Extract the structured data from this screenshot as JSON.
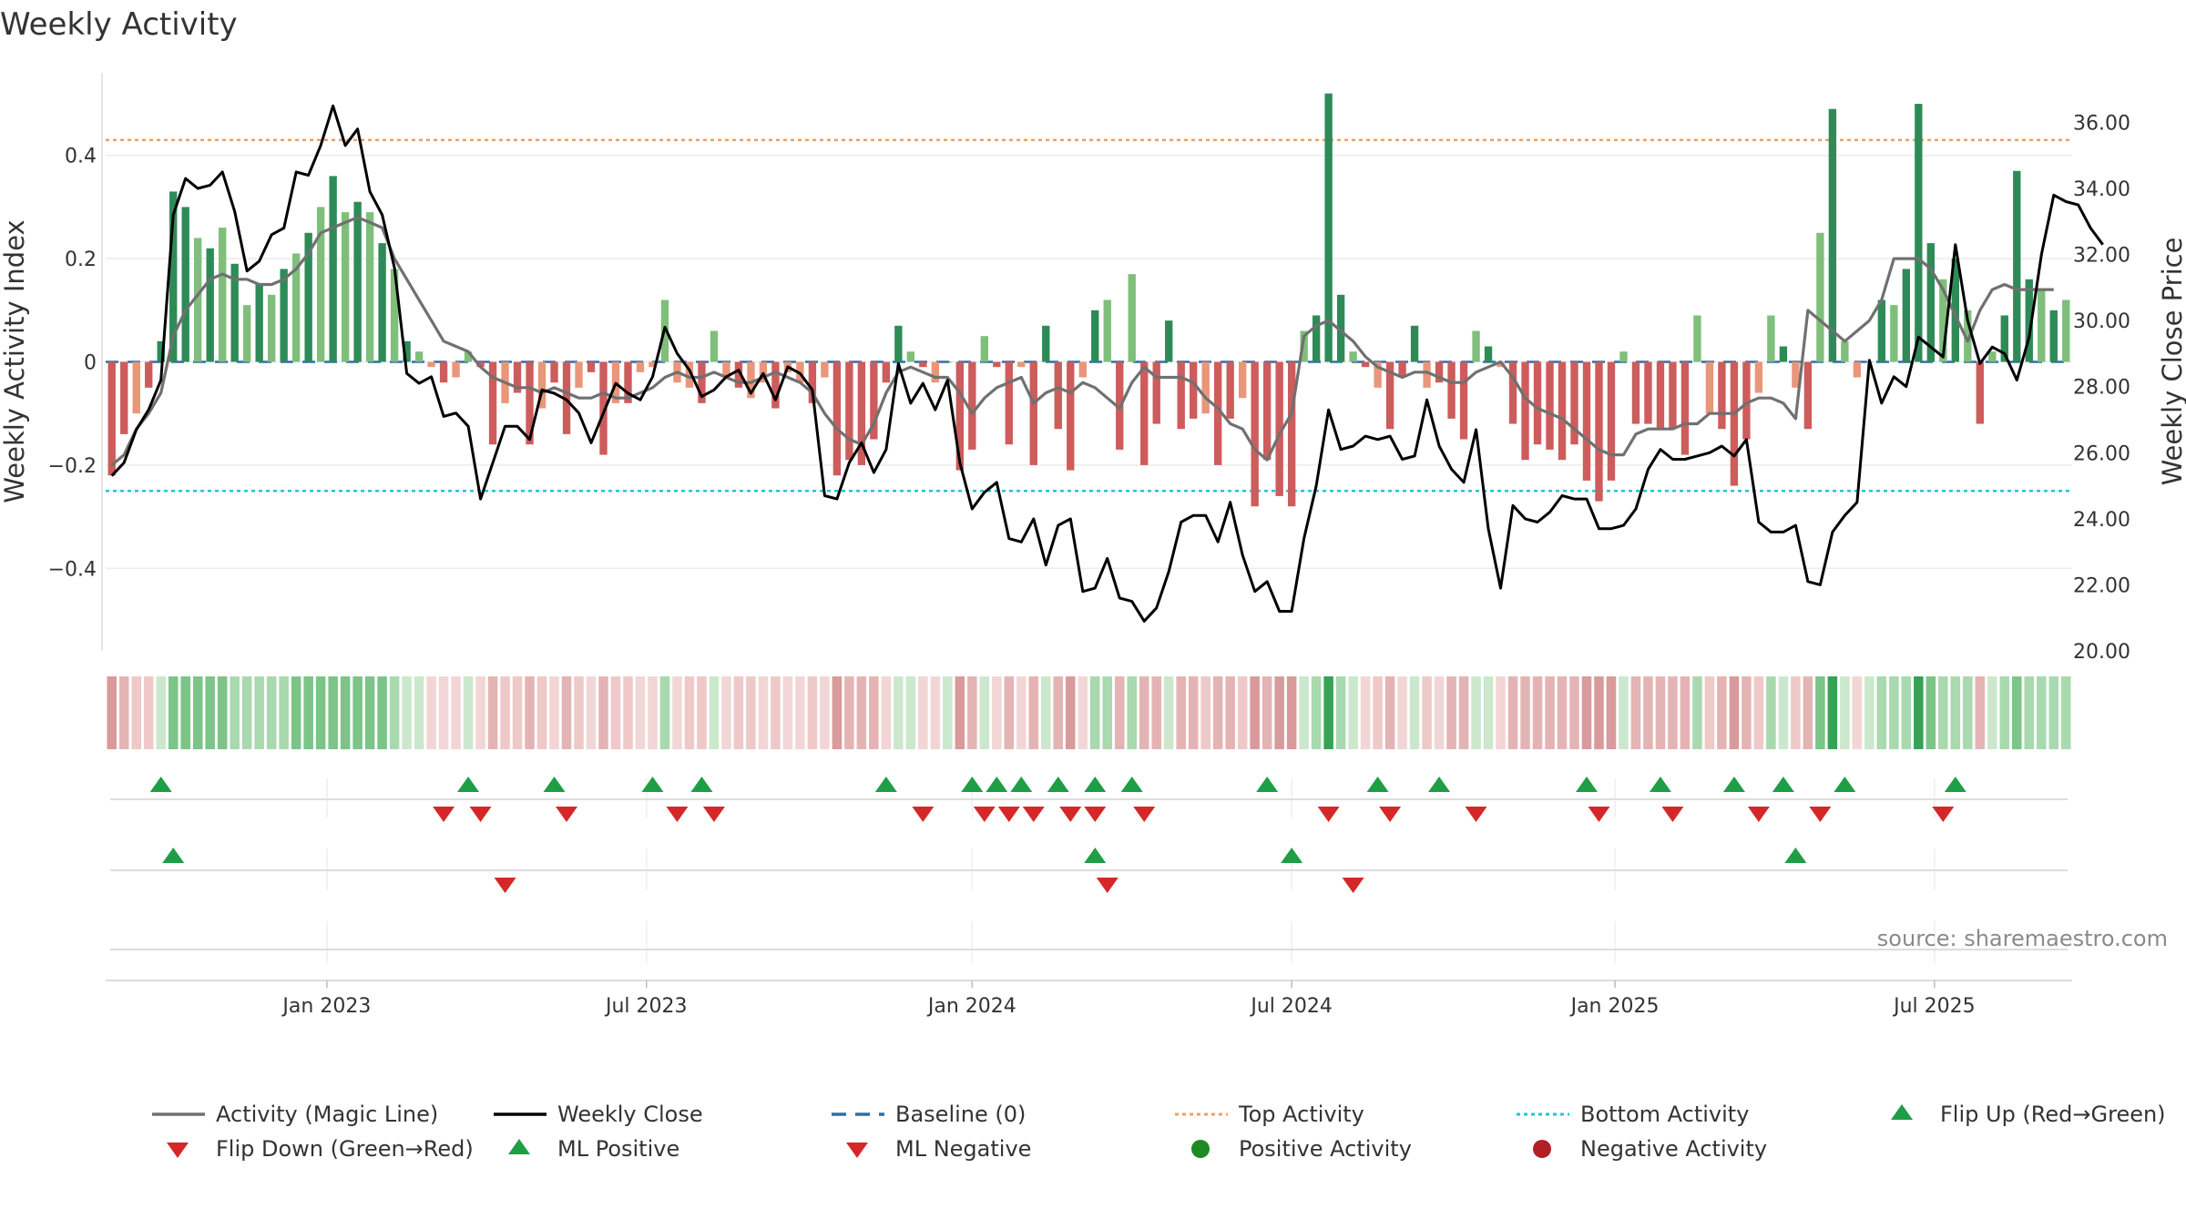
{
  "title": "Weekly Activity",
  "source": "source: sharemaestro.com",
  "chart_data": {
    "type": "bar",
    "title": "Weekly Activity",
    "ylabel": "Weekly Activity Index",
    "y2label": "Weekly Close Price",
    "ylim": [
      -0.56,
      0.56
    ],
    "y2lim": [
      20.0,
      37.5
    ],
    "yticks": [
      -0.4,
      -0.2,
      0,
      0.2,
      0.4
    ],
    "ytick_labels": [
      "−0.4",
      "−0.2",
      "0",
      "0.2",
      "0.4"
    ],
    "y2ticks": [
      20,
      22,
      24,
      26,
      28,
      30,
      32,
      34,
      36
    ],
    "y2tick_labels": [
      "20.00",
      "22.00",
      "24.00",
      "26.00",
      "28.00",
      "30.00",
      "32.00",
      "34.00",
      "36.00"
    ],
    "x_start": "2022-08-29",
    "xticks": [
      {
        "label": "Jan 2023",
        "week": 18
      },
      {
        "label": "Jul 2023",
        "week": 44
      },
      {
        "label": "Jan 2024",
        "week": 70.5
      },
      {
        "label": "Jul 2024",
        "week": 96.5
      },
      {
        "label": "Jan 2025",
        "week": 122.8
      },
      {
        "label": "Jul 2025",
        "week": 148.8
      }
    ],
    "top_activity": 0.43,
    "bottom_activity": -0.25,
    "baseline": 0,
    "activity": [
      -0.22,
      -0.14,
      -0.1,
      -0.05,
      0.04,
      0.33,
      0.3,
      0.24,
      0.22,
      0.26,
      0.19,
      0.11,
      0.15,
      0.13,
      0.18,
      0.21,
      0.25,
      0.3,
      0.36,
      0.29,
      0.31,
      0.29,
      0.23,
      0.18,
      0.04,
      0.02,
      -0.01,
      -0.04,
      -0.03,
      0.02,
      -0.01,
      -0.16,
      -0.08,
      -0.06,
      -0.16,
      -0.09,
      -0.04,
      -0.14,
      -0.05,
      -0.02,
      -0.18,
      -0.08,
      -0.08,
      -0.02,
      -0.01,
      0.12,
      -0.04,
      -0.05,
      -0.08,
      0.06,
      -0.03,
      -0.05,
      -0.07,
      -0.04,
      -0.09,
      -0.02,
      -0.04,
      -0.08,
      -0.03,
      -0.22,
      -0.19,
      -0.2,
      -0.15,
      -0.04,
      0.07,
      0.02,
      -0.01,
      -0.04,
      0.0,
      -0.21,
      -0.17,
      0.05,
      -0.01,
      -0.16,
      -0.01,
      -0.2,
      0.07,
      -0.13,
      -0.21,
      -0.03,
      0.1,
      0.12,
      -0.17,
      0.17,
      -0.2,
      -0.12,
      0.08,
      -0.13,
      -0.11,
      -0.1,
      -0.2,
      -0.11,
      -0.07,
      -0.28,
      -0.19,
      -0.26,
      -0.28,
      0.06,
      0.09,
      0.52,
      0.13,
      0.02,
      -0.01,
      -0.05,
      -0.13,
      -0.03,
      0.07,
      -0.05,
      -0.04,
      -0.11,
      -0.15,
      0.06,
      0.03,
      -0.01,
      -0.12,
      -0.19,
      -0.16,
      -0.17,
      -0.19,
      -0.16,
      -0.23,
      -0.27,
      -0.23,
      0.02,
      -0.12,
      -0.12,
      -0.13,
      -0.13,
      -0.18,
      0.09,
      -0.1,
      -0.13,
      -0.24,
      -0.15,
      -0.06,
      0.09,
      0.03,
      -0.05,
      -0.13,
      0.25,
      0.49,
      0.04,
      -0.03,
      0.0,
      0.12,
      0.11,
      0.18,
      0.5,
      0.23,
      0.16,
      0.2,
      0.1,
      -0.12,
      0.02,
      0.09,
      0.37,
      0.16,
      0.14,
      0.1,
      0.12
    ],
    "magic_line": [
      -0.2,
      -0.18,
      -0.13,
      -0.1,
      -0.06,
      0.05,
      0.1,
      0.13,
      0.16,
      0.17,
      0.16,
      0.16,
      0.15,
      0.15,
      0.16,
      0.18,
      0.21,
      0.25,
      0.26,
      0.27,
      0.28,
      0.27,
      0.26,
      0.2,
      0.16,
      0.12,
      0.08,
      0.04,
      0.03,
      0.02,
      -0.01,
      -0.03,
      -0.04,
      -0.05,
      -0.05,
      -0.06,
      -0.05,
      -0.06,
      -0.07,
      -0.07,
      -0.06,
      -0.07,
      -0.07,
      -0.06,
      -0.05,
      -0.03,
      -0.02,
      -0.03,
      -0.03,
      -0.02,
      -0.03,
      -0.04,
      -0.04,
      -0.03,
      -0.02,
      -0.03,
      -0.04,
      -0.06,
      -0.1,
      -0.13,
      -0.15,
      -0.16,
      -0.12,
      -0.06,
      -0.02,
      -0.01,
      -0.02,
      -0.03,
      -0.03,
      -0.06,
      -0.1,
      -0.07,
      -0.05,
      -0.04,
      -0.03,
      -0.08,
      -0.06,
      -0.05,
      -0.06,
      -0.04,
      -0.05,
      -0.07,
      -0.09,
      -0.04,
      -0.01,
      -0.03,
      -0.03,
      -0.03,
      -0.04,
      -0.07,
      -0.09,
      -0.12,
      -0.13,
      -0.17,
      -0.19,
      -0.14,
      -0.1,
      0.05,
      0.07,
      0.08,
      0.06,
      0.04,
      0.01,
      -0.01,
      -0.02,
      -0.03,
      -0.02,
      -0.02,
      -0.03,
      -0.04,
      -0.04,
      -0.02,
      -0.01,
      0.0,
      -0.03,
      -0.07,
      -0.09,
      -0.1,
      -0.11,
      -0.13,
      -0.15,
      -0.17,
      -0.18,
      -0.18,
      -0.14,
      -0.13,
      -0.13,
      -0.13,
      -0.12,
      -0.12,
      -0.1,
      -0.1,
      -0.1,
      -0.08,
      -0.07,
      -0.07,
      -0.08,
      -0.11,
      0.1,
      0.08,
      0.06,
      0.04,
      0.06,
      0.08,
      0.12,
      0.2,
      0.2,
      0.2,
      0.18,
      0.14,
      0.09,
      0.04,
      0.1,
      0.14,
      0.15,
      0.14,
      0.14,
      0.14,
      0.14
    ],
    "weekly_close": [
      25.3,
      25.7,
      26.7,
      27.3,
      28.2,
      33.2,
      34.3,
      34.0,
      34.1,
      34.5,
      33.3,
      31.5,
      31.8,
      32.6,
      32.8,
      34.5,
      34.4,
      35.3,
      36.5,
      35.3,
      35.8,
      33.9,
      33.2,
      31.6,
      28.4,
      28.1,
      28.3,
      27.1,
      27.2,
      26.8,
      24.6,
      25.7,
      26.8,
      26.8,
      26.4,
      27.9,
      27.8,
      27.6,
      27.2,
      26.3,
      27.2,
      28.1,
      27.8,
      27.6,
      28.3,
      29.8,
      29.0,
      28.5,
      27.7,
      27.9,
      28.3,
      28.5,
      27.8,
      28.4,
      27.6,
      28.6,
      28.4,
      27.9,
      24.7,
      24.6,
      25.7,
      26.3,
      25.4,
      26.1,
      28.7,
      27.5,
      28.1,
      27.3,
      28.2,
      25.7,
      24.3,
      24.8,
      25.1,
      23.4,
      23.3,
      24.0,
      22.6,
      23.8,
      24.0,
      21.8,
      21.9,
      22.8,
      21.6,
      21.5,
      20.9,
      21.3,
      22.4,
      23.9,
      24.1,
      24.1,
      23.3,
      24.5,
      22.9,
      21.8,
      22.1,
      21.2,
      21.2,
      23.4,
      25.0,
      27.3,
      26.1,
      26.2,
      26.5,
      26.4,
      26.5,
      25.8,
      25.9,
      27.6,
      26.2,
      25.5,
      25.1,
      26.7,
      23.7,
      21.9,
      24.4,
      24.0,
      23.9,
      24.2,
      24.7,
      24.6,
      24.6,
      23.7,
      23.7,
      23.8,
      24.3,
      25.5,
      26.1,
      25.8,
      25.8,
      25.9,
      26.0,
      26.2,
      25.9,
      26.4,
      23.9,
      23.6,
      23.6,
      23.8,
      22.1,
      22.0,
      23.6,
      24.1,
      24.5,
      28.8,
      27.5,
      28.3,
      28.0,
      29.5,
      29.2,
      28.9,
      32.3,
      30.0,
      28.7,
      29.2,
      29.0,
      28.2,
      29.5,
      32.0,
      33.8,
      33.6,
      33.5,
      32.8,
      32.3
    ],
    "heat_strip": [
      -0.22,
      -0.14,
      -0.1,
      -0.05,
      0.04,
      0.33,
      0.3,
      0.24,
      0.22,
      0.26,
      0.19,
      0.11,
      0.15,
      0.13,
      0.18,
      0.21,
      0.25,
      0.3,
      0.36,
      0.29,
      0.31,
      0.29,
      0.23,
      0.18,
      0.04,
      0.02,
      -0.01,
      -0.04,
      -0.03,
      0.02,
      -0.01,
      -0.16,
      -0.08,
      -0.06,
      -0.16,
      -0.09,
      -0.04,
      -0.14,
      -0.05,
      -0.02,
      -0.18,
      -0.08,
      -0.08,
      -0.02,
      -0.01,
      0.12,
      -0.04,
      -0.05,
      -0.08,
      0.06,
      -0.03,
      -0.05,
      -0.07,
      -0.04,
      -0.09,
      -0.02,
      -0.04,
      -0.08,
      -0.03,
      -0.22,
      -0.19,
      -0.2,
      -0.15,
      -0.04,
      0.07,
      0.02,
      -0.01,
      -0.04,
      0.0,
      -0.21,
      -0.17,
      0.05,
      -0.01,
      -0.16,
      -0.01,
      -0.2,
      0.07,
      -0.13,
      -0.21,
      -0.03,
      0.1,
      0.12,
      -0.17,
      0.17,
      -0.2,
      -0.12,
      0.08,
      -0.13,
      -0.11,
      -0.1,
      -0.2,
      -0.11,
      -0.07,
      -0.28,
      -0.19,
      -0.26,
      -0.28,
      0.06,
      0.09,
      0.52,
      0.13,
      0.02,
      -0.01,
      -0.05,
      -0.13,
      -0.03,
      0.07,
      -0.05,
      -0.04,
      -0.11,
      -0.15,
      0.06,
      0.03,
      -0.01,
      -0.12,
      -0.19,
      -0.16,
      -0.17,
      -0.19,
      -0.16,
      -0.23,
      -0.27,
      -0.23,
      0.02,
      -0.12,
      -0.12,
      -0.13,
      -0.13,
      -0.18,
      0.09,
      -0.1,
      -0.13,
      -0.24,
      -0.15,
      -0.06,
      0.09,
      0.03,
      -0.05,
      -0.13,
      0.25,
      0.49,
      0.04,
      -0.03,
      0.0,
      0.12,
      0.11,
      0.18,
      0.5,
      0.23,
      0.16,
      0.2,
      0.1,
      -0.12,
      0.02,
      0.09,
      0.37,
      0.16,
      0.14,
      0.1,
      0.12
    ],
    "flip_up_weeks": [
      4,
      29,
      36,
      44,
      48,
      63,
      70,
      72,
      74,
      77,
      80,
      83,
      94,
      103,
      108,
      120,
      126,
      132,
      136,
      141,
      150
    ],
    "flip_down_weeks": [
      27,
      30,
      37,
      46,
      49,
      66,
      71,
      73,
      75,
      78,
      80,
      84,
      99,
      104,
      111,
      121,
      127,
      134,
      139,
      149
    ],
    "ml_positive_weeks": [
      5,
      80,
      96,
      137
    ],
    "ml_negative_weeks": [
      32,
      81,
      101
    ],
    "legend": [
      {
        "label": "Activity (Magic Line)",
        "marker": "line",
        "color": "#707070"
      },
      {
        "label": "Weekly Close",
        "marker": "line",
        "color": "#000000"
      },
      {
        "label": "Baseline (0)",
        "marker": "dash",
        "color": "#2f6fa8"
      },
      {
        "label": "Top Activity",
        "marker": "dot-line",
        "color": "#f0a060"
      },
      {
        "label": "Bottom Activity",
        "marker": "dot-line",
        "color": "#27c3d6"
      },
      {
        "label": "Flip Up (Red→Green)",
        "marker": "triangle-up",
        "color": "#1e9e46"
      },
      {
        "label": "Flip Down (Green→Red)",
        "marker": "triangle-down",
        "color": "#d62728"
      },
      {
        "label": "ML Positive",
        "marker": "triangle-up",
        "color": "#1e9e46"
      },
      {
        "label": "ML Negative",
        "marker": "triangle-down",
        "color": "#d62728"
      },
      {
        "label": "Positive Activity",
        "marker": "circle",
        "color": "#1e8a22"
      },
      {
        "label": "Negative Activity",
        "marker": "circle",
        "color": "#b02025"
      }
    ]
  }
}
